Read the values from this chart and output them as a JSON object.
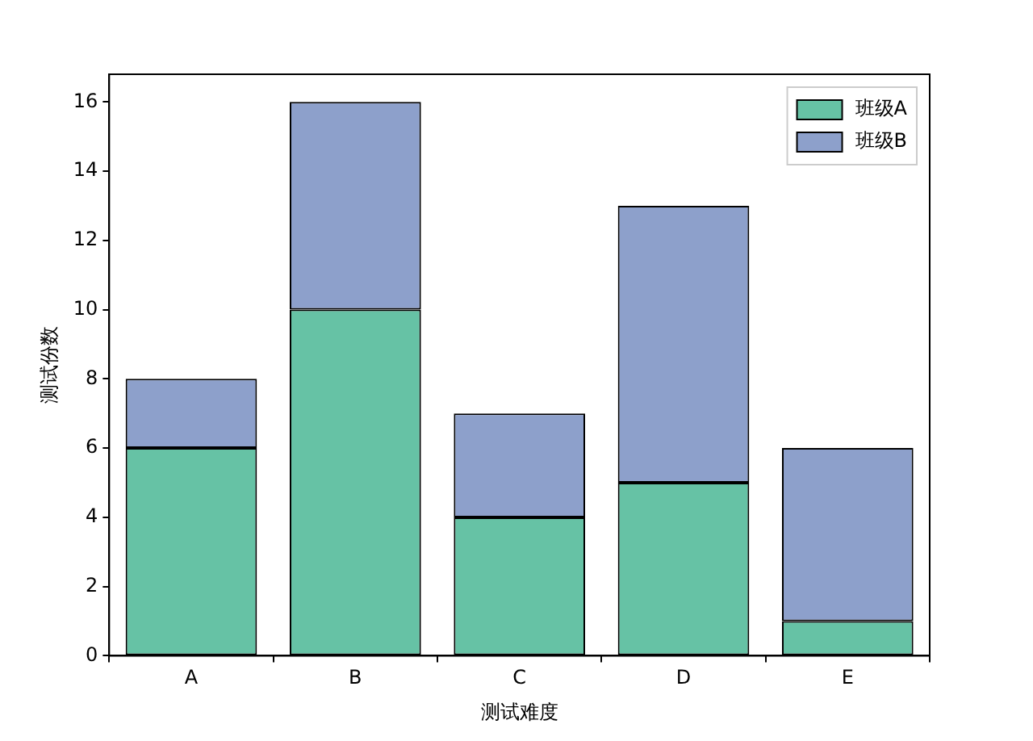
{
  "chart_data": {
    "type": "bar",
    "stacked": true,
    "xlabel": "测试难度",
    "ylabel": "测试份数",
    "categories": [
      "A",
      "B",
      "C",
      "D",
      "E"
    ],
    "series": [
      {
        "name": "班级A",
        "color": "#66c2a5",
        "values": [
          6,
          10,
          4,
          5,
          1
        ]
      },
      {
        "name": "班级B",
        "color": "#8da0cb",
        "values": [
          2,
          6,
          3,
          8,
          5
        ]
      }
    ],
    "ylim": [
      0,
      16.8
    ],
    "yticks": [
      0,
      2,
      4,
      6,
      8,
      10,
      12,
      14,
      16
    ],
    "grid": false,
    "legend": "top right"
  }
}
